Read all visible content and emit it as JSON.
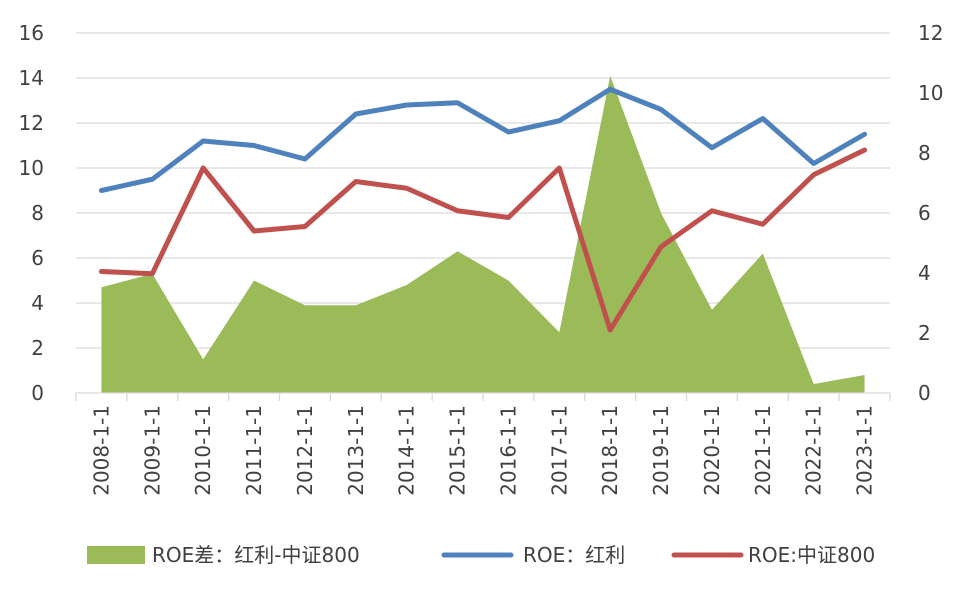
{
  "chart_data": {
    "type": "line",
    "categories": [
      "2008-1-1",
      "2009-1-1",
      "2010-1-1",
      "2011-1-1",
      "2012-1-1",
      "2013-1-1",
      "2014-1-1",
      "2015-1-1",
      "2016-1-1",
      "2017-1-1",
      "2018-1-1",
      "2019-1-1",
      "2020-1-1",
      "2021-1-1",
      "2022-1-1",
      "2023-1-1"
    ],
    "y_left": {
      "min": 0,
      "max": 16,
      "step": 2,
      "ticks": [
        "0",
        "2",
        "4",
        "6",
        "8",
        "10",
        "12",
        "14",
        "16"
      ]
    },
    "y_right": {
      "min": 0,
      "max": 12,
      "step": 2,
      "ticks": [
        "0",
        "2",
        "4",
        "6",
        "8",
        "10",
        "12"
      ]
    },
    "grid": true,
    "legend_position": "bottom",
    "series": [
      {
        "name": "ROE差：红利-中证800",
        "type": "area",
        "axis": "left",
        "color": "#9BBB59",
        "values": [
          4.7,
          5.3,
          1.5,
          5.0,
          3.9,
          3.9,
          4.8,
          6.3,
          5.0,
          2.7,
          14.1,
          8.0,
          3.7,
          6.2,
          0.4,
          0.8
        ]
      },
      {
        "name": "ROE：红利",
        "type": "line",
        "axis": "left",
        "color": "#4F81BD",
        "values": [
          9.0,
          9.5,
          11.2,
          11.0,
          10.4,
          12.4,
          12.8,
          12.9,
          11.6,
          12.1,
          13.5,
          12.6,
          10.9,
          12.2,
          10.2,
          11.5
        ]
      },
      {
        "name": "ROE:中证800",
        "type": "line",
        "axis": "left",
        "color": "#C0504D",
        "values": [
          5.4,
          5.3,
          10.0,
          7.2,
          7.4,
          9.4,
          9.1,
          8.1,
          7.8,
          10.0,
          2.8,
          6.5,
          8.1,
          7.5,
          9.7,
          10.8
        ]
      }
    ]
  }
}
